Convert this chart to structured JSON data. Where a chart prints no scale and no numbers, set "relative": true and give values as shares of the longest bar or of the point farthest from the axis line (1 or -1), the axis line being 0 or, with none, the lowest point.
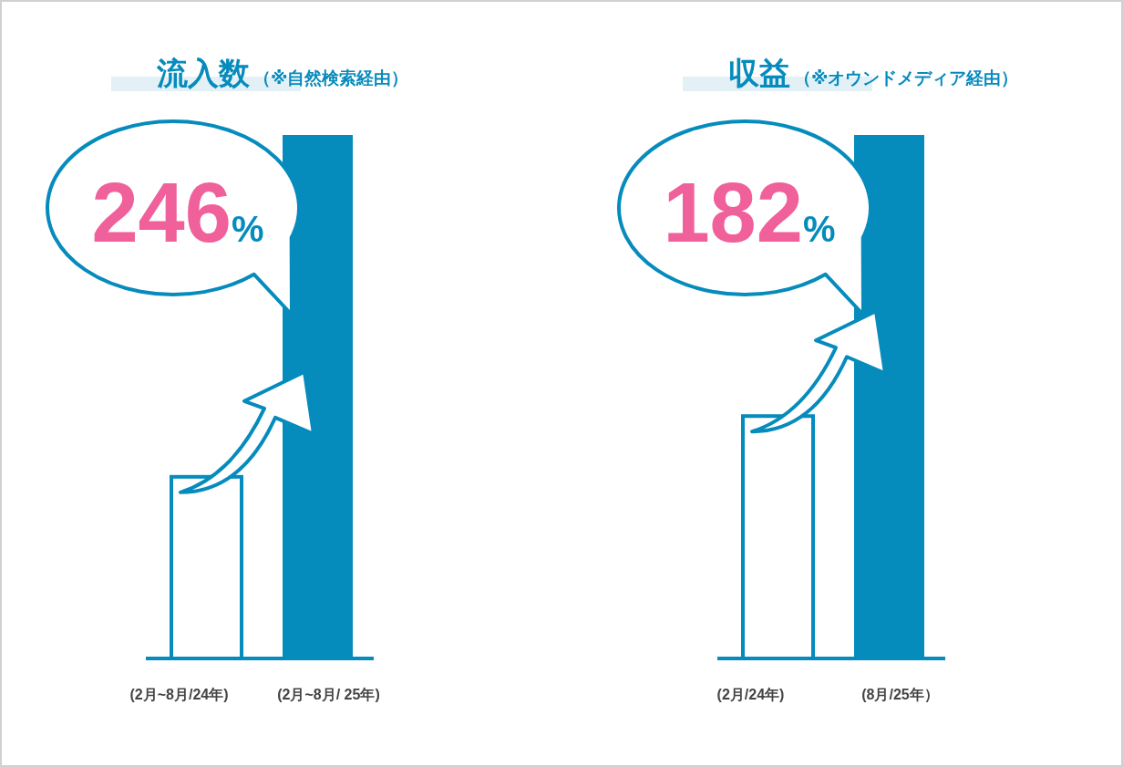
{
  "chart_data": [
    {
      "type": "bar",
      "title": "流入数",
      "subtitle": "（※自然検索経由）",
      "relative": true,
      "categories": [
        "(2月~8月/24年)",
        "(2月~8月/ 25年)"
      ],
      "values": [
        0.347,
        1
      ],
      "colors": [
        "#ffffff",
        "#068bbd"
      ],
      "annotations": [
        "246%"
      ]
    },
    {
      "type": "bar",
      "title": "収益",
      "subtitle": "（※オウンドメディア経由）",
      "relative": true,
      "categories": [
        "(2月/24年)",
        "(8月/25年）"
      ],
      "values": [
        0.463,
        1
      ],
      "colors": [
        "#ffffff",
        "#068bbd"
      ],
      "annotations": [
        "182%"
      ]
    }
  ]
}
